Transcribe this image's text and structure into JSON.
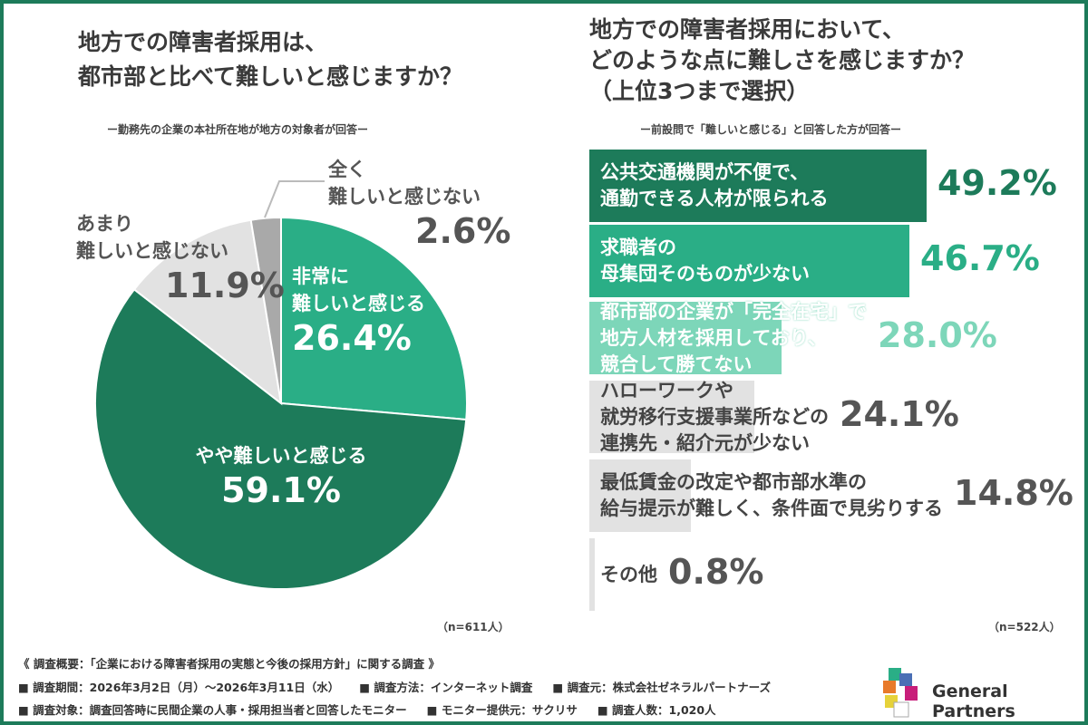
{
  "chart_data": [
    {
      "type": "pie",
      "title": "地方での障害者採用は、\n都市部と比べて難しいと感じますか？",
      "subtitle": "ー勤務先の企業の本社所在地が地方の対象者が回答ー",
      "note": "（n=611人）",
      "slices": [
        {
          "label": "非常に\n難しいと感じる",
          "value": 26.4,
          "display": "26.4%",
          "color": "#2aae86"
        },
        {
          "label": "やや難しいと感じる",
          "value": 59.1,
          "display": "59.1%",
          "color": "#1d7b5a"
        },
        {
          "label": "あまり\n難しいと感じない",
          "value": 11.9,
          "display": "11.9%",
          "color": "#e2e2e2"
        },
        {
          "label": "全く\n難しいと感じない",
          "value": 2.6,
          "display": "2.6%",
          "color": "#a9a9a9"
        }
      ]
    },
    {
      "type": "bar",
      "title": "地方での障害者採用において、\nどのような点に難しさを感じますか？\n（上位3つまで選択）",
      "subtitle": "ー前設問で「難しいと感じる」と回答した方が回答ー",
      "note": "（n=522人）",
      "orientation": "horizontal",
      "categories": [
        "公共交通機関が不便で、\n通勤できる人材が限られる",
        "求職者の\n母集団そのものが少ない",
        "都市部の企業が「完全在宅」で\n地方人材を採用しており、\n競合して勝てない",
        "ハローワークや\n就労移行支援事業所などの\n連携先・紹介元が少ない",
        "最低賃金の改定や都市部水準の\n給与提示が難しく、条件面で見劣りする",
        "その他"
      ],
      "values": [
        49.2,
        46.7,
        28.0,
        24.1,
        14.8,
        0.8
      ],
      "displays": [
        "49.2%",
        "46.7%",
        "28.0%",
        "24.1%",
        "14.8%",
        "0.8%"
      ],
      "colors": [
        "#1d7b5a",
        "#2aae86",
        "#7dd6b9",
        "#e2e2e2",
        "#e2e2e2",
        "#e2e2e2"
      ],
      "value_colors": [
        "#1d7b5a",
        "#2aae86",
        "#7dd6b9",
        "#555555",
        "#555555",
        "#555555"
      ]
    }
  ],
  "footer": {
    "summary": "《 調査概要：「企業における障害者採用の実態と今後の採用方針」に関する調査 》",
    "line1": [
      "■ 調査期間：2026年3月2日（月）～2026年3月11日（水）",
      "■ 調査方法：インターネット調査",
      "■ 調査元：株式会社ゼネラルパートナーズ"
    ],
    "line2": [
      "■ 調査対象：調査回答時に民間企業の人事・採用担当者と回答したモニター",
      "■ モニター提供元：サクリサ",
      "■ 調査人数：1,020人"
    ],
    "logo": "General Partners"
  }
}
